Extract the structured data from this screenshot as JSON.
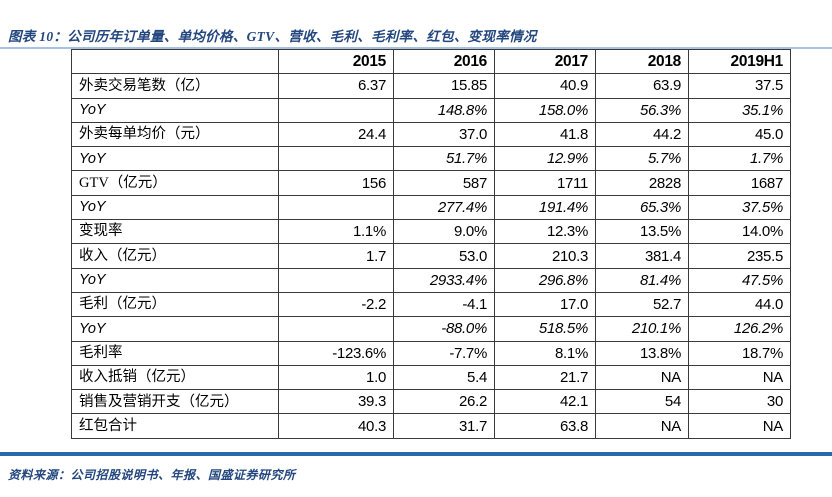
{
  "caption": "图表 10：公司历年订单量、单均价格、GTV、营收、毛利、毛利率、红包、变现率情况",
  "source_note": "资料来源：公司招股说明书、年报、国盛证券研究所",
  "colors": {
    "caption_blue": "#23477E",
    "top_rule": "#A6C1E1",
    "bottom_rule": "#2A68AC",
    "table_border": "#3A3A3A"
  },
  "chart_data": {
    "type": "table",
    "title": "公司历年订单量、单均价格、GTV、营收、毛利、毛利率、红包、变现率情况",
    "columns": [
      "",
      "2015",
      "2016",
      "2017",
      "2018",
      "2019H1"
    ],
    "rows": [
      {
        "label": "外卖交易笔数（亿）",
        "values": [
          "6.37",
          "15.85",
          "40.9",
          "63.9",
          "37.5"
        ],
        "italic": false
      },
      {
        "label": "YoY",
        "values": [
          "",
          "148.8%",
          "158.0%",
          "56.3%",
          "35.1%"
        ],
        "italic": true
      },
      {
        "label": "外卖每单均价（元）",
        "values": [
          "24.4",
          "37.0",
          "41.8",
          "44.2",
          "45.0"
        ],
        "italic": false
      },
      {
        "label": "YoY",
        "values": [
          "",
          "51.7%",
          "12.9%",
          "5.7%",
          "1.7%"
        ],
        "italic": true
      },
      {
        "label": "GTV（亿元）",
        "values": [
          "156",
          "587",
          "1711",
          "2828",
          "1687"
        ],
        "italic": false
      },
      {
        "label": "YoY",
        "values": [
          "",
          "277.4%",
          "191.4%",
          "65.3%",
          "37.5%"
        ],
        "italic": true
      },
      {
        "label": "变现率",
        "values": [
          "1.1%",
          "9.0%",
          "12.3%",
          "13.5%",
          "14.0%"
        ],
        "italic": false
      },
      {
        "label": "收入（亿元）",
        "values": [
          "1.7",
          "53.0",
          "210.3",
          "381.4",
          "235.5"
        ],
        "italic": false
      },
      {
        "label": "YoY",
        "values": [
          "",
          "2933.4%",
          "296.8%",
          "81.4%",
          "47.5%"
        ],
        "italic": true
      },
      {
        "label": "毛利（亿元）",
        "values": [
          "-2.2",
          "-4.1",
          "17.0",
          "52.7",
          "44.0"
        ],
        "italic": false
      },
      {
        "label": "YoY",
        "values": [
          "",
          "-88.0%",
          "518.5%",
          "210.1%",
          "126.2%"
        ],
        "italic": true
      },
      {
        "label": "毛利率",
        "values": [
          "-123.6%",
          "-7.7%",
          "8.1%",
          "13.8%",
          "18.7%"
        ],
        "italic": false
      },
      {
        "label": "收入抵销（亿元）",
        "values": [
          "1.0",
          "5.4",
          "21.7",
          "NA",
          "NA"
        ],
        "italic": false
      },
      {
        "label": "销售及营销开支（亿元）",
        "values": [
          "39.3",
          "26.2",
          "42.1",
          "54",
          "30"
        ],
        "italic": false
      },
      {
        "label": "红包合计",
        "values": [
          "40.3",
          "31.7",
          "63.8",
          "NA",
          "NA"
        ],
        "italic": false
      }
    ]
  }
}
